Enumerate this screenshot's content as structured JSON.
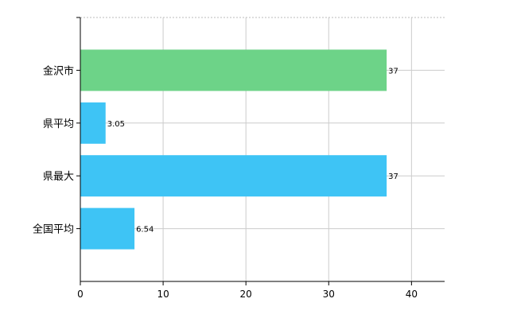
{
  "chart_data": {
    "type": "bar",
    "orientation": "horizontal",
    "categories": [
      "金沢市",
      "県平均",
      "県最大",
      "全国平均"
    ],
    "values": [
      37,
      3.05,
      37,
      6.54
    ],
    "data_labels": [
      "37",
      "3.05",
      "37",
      "6.54"
    ],
    "bar_colors": [
      "#6dd388",
      "#3ec4f5",
      "#3ec4f5",
      "#3ec4f5"
    ],
    "xlim": [
      0,
      44
    ],
    "xticks": [
      0,
      10,
      20,
      30,
      40
    ],
    "xtick_labels": [
      "0",
      "10",
      "20",
      "30",
      "40"
    ],
    "grid": true,
    "legend": "none"
  }
}
